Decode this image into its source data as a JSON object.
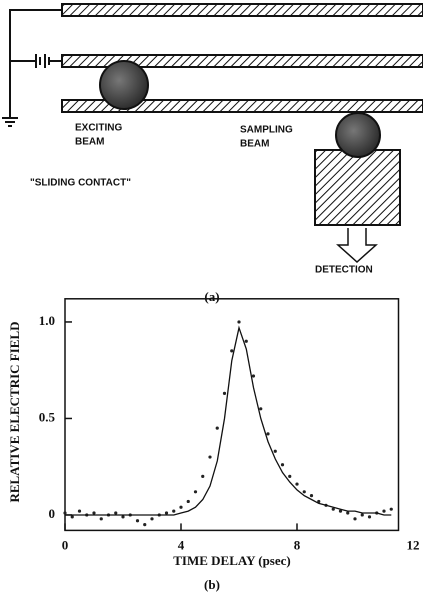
{
  "figure_a": {
    "exciting_beam": [
      "EXCITING",
      "BEAM"
    ],
    "sampling_beam": [
      "SAMPLING",
      "BEAM"
    ],
    "sliding_contact": "\"SLIDING CONTACT\"",
    "detection": "DETECTION",
    "caption": "(a)"
  },
  "chart_data": {
    "type": "line",
    "caption": "(b)",
    "xlabel": "TIME DELAY (psec)",
    "ylabel": "RELATIVE ELECTRIC FIELD",
    "xlim": [
      0,
      11.5
    ],
    "xticks": [
      0,
      4,
      8,
      12
    ],
    "ylim": [
      -0.08,
      1.12
    ],
    "yticks": [
      0,
      0.5,
      {
        "value": 1,
        "label": "1.0"
      }
    ],
    "x": [
      0,
      0.25,
      0.5,
      0.75,
      1,
      1.25,
      1.5,
      1.75,
      2,
      2.25,
      2.5,
      2.75,
      3,
      3.25,
      3.5,
      3.75,
      4,
      4.25,
      4.5,
      4.75,
      5,
      5.25,
      5.5,
      5.75,
      6,
      6.25,
      6.5,
      6.75,
      7,
      7.25,
      7.5,
      7.75,
      8,
      8.25,
      8.5,
      8.75,
      9,
      9.25,
      9.5,
      9.75,
      10,
      10.25,
      10.5,
      10.75,
      11,
      11.25
    ],
    "series": [
      {
        "style": "dots",
        "color": "#222222",
        "values": [
          0.01,
          -0.01,
          0.02,
          0,
          0.01,
          -0.02,
          0,
          0.01,
          -0.01,
          0,
          -0.03,
          -0.05,
          -0.02,
          0,
          0.01,
          0.02,
          0.04,
          0.07,
          0.12,
          0.2,
          0.3,
          0.45,
          0.63,
          0.85,
          1.0,
          0.9,
          0.72,
          0.55,
          0.42,
          0.33,
          0.26,
          0.2,
          0.16,
          0.12,
          0.1,
          0.07,
          0.05,
          0.03,
          0.02,
          0.01,
          -0.02,
          0,
          -0.01,
          0.01,
          0.02,
          0.03
        ]
      },
      {
        "style": "line",
        "color": "#111111",
        "values": [
          0,
          0,
          0,
          0,
          0,
          0,
          0,
          0,
          0,
          0,
          0,
          0,
          0,
          0,
          0,
          0,
          0.01,
          0.02,
          0.04,
          0.08,
          0.15,
          0.28,
          0.5,
          0.8,
          0.97,
          0.86,
          0.66,
          0.5,
          0.38,
          0.29,
          0.22,
          0.17,
          0.13,
          0.1,
          0.08,
          0.06,
          0.05,
          0.04,
          0.03,
          0.02,
          0.02,
          0.01,
          0.01,
          0.01,
          0,
          0
        ]
      }
    ]
  }
}
